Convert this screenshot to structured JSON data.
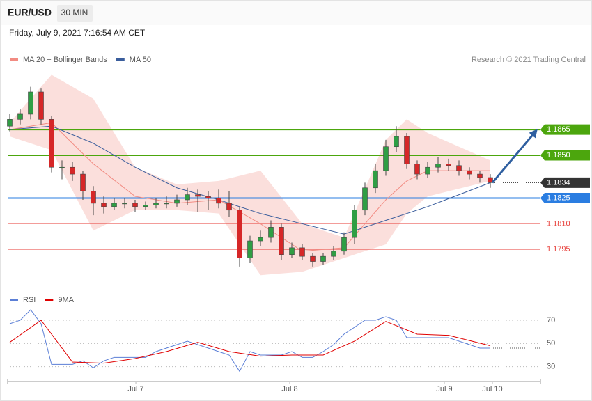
{
  "header": {
    "symbol": "EUR/USD",
    "timeframe": "30 MIN",
    "date": "Friday, July 9, 2021 7:16:54 AM CET"
  },
  "chart_data": [
    {
      "type": "candlestick",
      "credit": "Research © 2021 Trading Central",
      "x": [
        0,
        1,
        2,
        3,
        4,
        5,
        6,
        7,
        8,
        9,
        10,
        11,
        12,
        13,
        14,
        15,
        16,
        17,
        18,
        19,
        20,
        21,
        22,
        23,
        24,
        25,
        26,
        27,
        28,
        29,
        30,
        31,
        32,
        33,
        34,
        35,
        36,
        37,
        38,
        39,
        40,
        41,
        42,
        43,
        44,
        45,
        46
      ],
      "open": [
        1.1867,
        1.1871,
        1.1874,
        1.1887,
        1.1871,
        1.1843,
        1.1843,
        1.1839,
        1.1829,
        1.1822,
        1.182,
        1.1822,
        1.1822,
        1.182,
        1.1821,
        1.1822,
        1.1822,
        1.1824,
        1.1827,
        1.1826,
        1.1825,
        1.1822,
        1.1818,
        1.179,
        1.18,
        1.1802,
        1.1808,
        1.1792,
        1.1796,
        1.1791,
        1.1788,
        1.1791,
        1.1794,
        1.1802,
        1.1818,
        1.1831,
        1.1841,
        1.1855,
        1.1861,
        1.1845,
        1.1839,
        1.1843,
        1.1845,
        1.1844,
        1.1841,
        1.1839,
        1.1837
      ],
      "high": [
        1.1874,
        1.1877,
        1.189,
        1.1889,
        1.1873,
        1.1847,
        1.1846,
        1.1841,
        1.1832,
        1.1826,
        1.1825,
        1.1825,
        1.1824,
        1.1823,
        1.1825,
        1.1826,
        1.1827,
        1.1831,
        1.183,
        1.1829,
        1.183,
        1.1829,
        1.182,
        1.1803,
        1.1806,
        1.1812,
        1.181,
        1.1799,
        1.1798,
        1.1793,
        1.1793,
        1.1797,
        1.1805,
        1.1821,
        1.1834,
        1.1845,
        1.1859,
        1.1867,
        1.1863,
        1.1847,
        1.1846,
        1.1849,
        1.1848,
        1.1847,
        1.1843,
        1.1841,
        1.1839
      ],
      "low": [
        1.1864,
        1.1868,
        1.1871,
        1.1868,
        1.184,
        1.1836,
        1.1835,
        1.1824,
        1.1815,
        1.1816,
        1.1818,
        1.1819,
        1.1817,
        1.1818,
        1.1819,
        1.1819,
        1.182,
        1.1821,
        1.1817,
        1.1818,
        1.1819,
        1.1814,
        1.1785,
        1.1787,
        1.1797,
        1.1799,
        1.1789,
        1.179,
        1.1789,
        1.1785,
        1.1786,
        1.1789,
        1.1792,
        1.1798,
        1.1815,
        1.1828,
        1.1838,
        1.1852,
        1.1842,
        1.1836,
        1.1837,
        1.184,
        1.1841,
        1.1838,
        1.1836,
        1.1834,
        1.1831
      ],
      "close": [
        1.1871,
        1.1874,
        1.1887,
        1.1871,
        1.1843,
        1.1843,
        1.1839,
        1.1829,
        1.1822,
        1.182,
        1.1822,
        1.1822,
        1.182,
        1.1821,
        1.1822,
        1.1822,
        1.1824,
        1.1827,
        1.1826,
        1.1825,
        1.1822,
        1.1818,
        1.179,
        1.18,
        1.1802,
        1.1808,
        1.1792,
        1.1796,
        1.1791,
        1.1788,
        1.1791,
        1.1794,
        1.1802,
        1.1818,
        1.1831,
        1.1841,
        1.1855,
        1.1861,
        1.1845,
        1.1839,
        1.1843,
        1.1845,
        1.1844,
        1.1841,
        1.1839,
        1.1837,
        1.1834
      ],
      "up_color": "#2f9e44",
      "down_color": "#d62728",
      "series": [
        {
          "name": "MA 20 + Bollinger Bands",
          "color": "#f28b82",
          "x": [
            0,
            4,
            8,
            12,
            16,
            20,
            24,
            28,
            32,
            36,
            38,
            40,
            46
          ],
          "values": [
            1.1865,
            1.1869,
            1.1845,
            1.1826,
            1.1822,
            1.1824,
            1.181,
            1.1794,
            1.1796,
            1.1824,
            1.1835,
            1.1841,
            1.1841
          ],
          "upper": [
            1.1869,
            1.1897,
            1.1883,
            1.1843,
            1.1833,
            1.1835,
            1.1841,
            1.181,
            1.1802,
            1.1859,
            1.1871,
            1.1863,
            1.1847
          ],
          "lower": [
            1.1861,
            1.1853,
            1.1806,
            1.1818,
            1.1818,
            1.1816,
            1.178,
            1.1782,
            1.179,
            1.1798,
            1.1816,
            1.1826,
            1.1835
          ]
        },
        {
          "name": "MA 50",
          "color": "#3a5d9c",
          "x": [
            0,
            4,
            8,
            12,
            16,
            20,
            24,
            28,
            32,
            36,
            40,
            46
          ],
          "values": [
            1.1865,
            1.1867,
            1.1857,
            1.1843,
            1.1831,
            1.1824,
            1.1816,
            1.181,
            1.1804,
            1.1812,
            1.182,
            1.1834
          ]
        }
      ],
      "levels": [
        1.1865,
        {
          "value": 1.185,
          "label": "1.1850"
        },
        1.1834,
        1.1825,
        {
          "value": 1.181,
          "label": "1.1810"
        },
        1.1795
      ],
      "level_colors": [
        "#4ca60d",
        "#4ca60d",
        "#333333",
        "#2a7de1",
        "#e8413c",
        "#e8413c"
      ],
      "level_styles": [
        "tag",
        "tag",
        "current",
        "tag",
        "text",
        "text"
      ],
      "xlim": [
        -0.2,
        50.8
      ],
      "xticks": [
        {
          "value": 12.07,
          "label": "Jul 7"
        },
        {
          "value": 26.8,
          "label": "Jul 8"
        },
        {
          "value": 41.6,
          "label": "Jul 9"
        },
        {
          "value": 46.2,
          "label": "Jul 10"
        }
      ],
      "ylim": [
        1.1774,
        1.19
      ]
    },
    {
      "type": "line",
      "series": [
        {
          "name": "RSI",
          "color": "#5b7fd6",
          "x": [
            0,
            1,
            2,
            3,
            4,
            5,
            6,
            7,
            8,
            9,
            10,
            11,
            12,
            13,
            14,
            15,
            16,
            17,
            18,
            19,
            20,
            21,
            22,
            23,
            24,
            25,
            26,
            27,
            28,
            29,
            30,
            31,
            32,
            33,
            34,
            35,
            36,
            37,
            38,
            39,
            40,
            41,
            42,
            43,
            44,
            45,
            46
          ],
          "values": [
            67,
            70,
            79,
            67,
            32,
            32,
            32,
            35,
            29,
            35,
            38,
            38,
            38,
            38,
            43,
            46,
            49,
            52,
            49,
            46,
            43,
            40,
            26,
            43,
            40,
            40,
            40,
            43,
            38,
            38,
            43,
            49,
            58,
            64,
            70,
            70,
            73,
            70,
            55,
            55,
            55,
            55,
            55,
            52,
            49,
            46,
            46
          ]
        },
        {
          "name": "9MA",
          "color": "#e00000",
          "x": [
            0,
            3,
            6,
            9,
            12,
            15,
            18,
            21,
            24,
            27,
            30,
            33,
            36,
            39,
            42,
            46
          ],
          "values": [
            51,
            70,
            34,
            33,
            37,
            43,
            51,
            43,
            39,
            40,
            40,
            52,
            69,
            58,
            57,
            48
          ]
        }
      ],
      "xlim": [
        -0.2,
        50.8
      ],
      "ylim": [
        19,
        82
      ],
      "yticks": [
        30,
        50,
        70
      ],
      "grid": true
    }
  ]
}
